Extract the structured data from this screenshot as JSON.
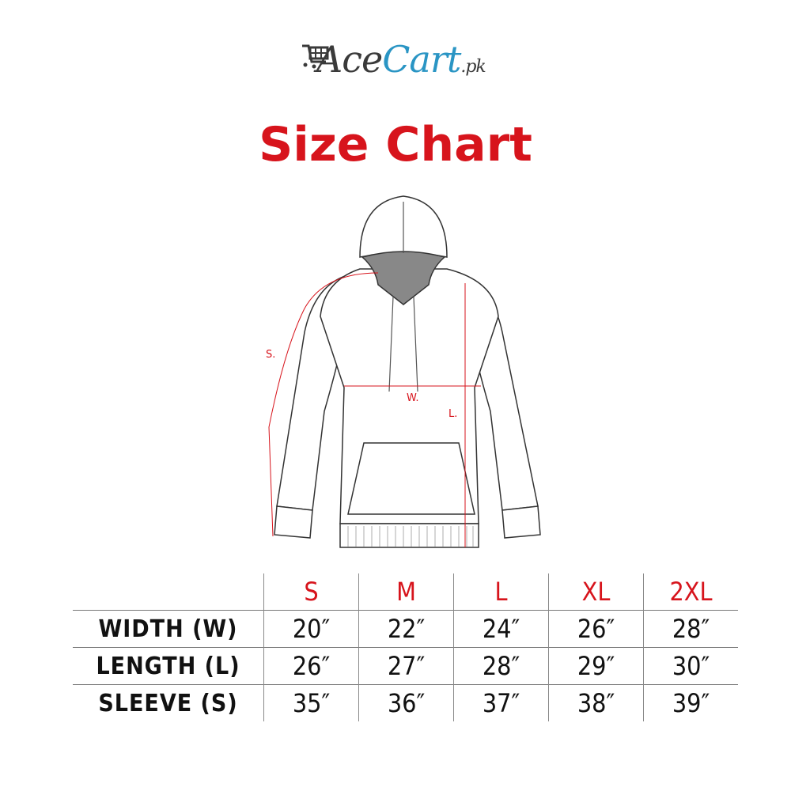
{
  "logo": {
    "part1": "Ace",
    "part2": "Cart",
    "part3": ".pk",
    "icon": "shopping-cart-icon",
    "colors": {
      "ace": "#3a3a3a",
      "cart": "#2a95c4"
    }
  },
  "title": "Size Chart",
  "accent_color": "#d7141c",
  "diagram": {
    "labels": {
      "sleeve": "S.",
      "width": "W.",
      "length": "L."
    }
  },
  "table": {
    "sizes": [
      "S",
      "M",
      "L",
      "XL",
      "2XL"
    ],
    "rows": [
      {
        "label": "WIDTH (W)",
        "values": [
          "20″",
          "22″",
          "24″",
          "26″",
          "28″"
        ]
      },
      {
        "label": "LENGTH (L)",
        "values": [
          "26″",
          "27″",
          "28″",
          "29″",
          "30″"
        ]
      },
      {
        "label": "SLEEVE (S)",
        "values": [
          "35″",
          "36″",
          "37″",
          "38″",
          "39″"
        ]
      }
    ]
  }
}
